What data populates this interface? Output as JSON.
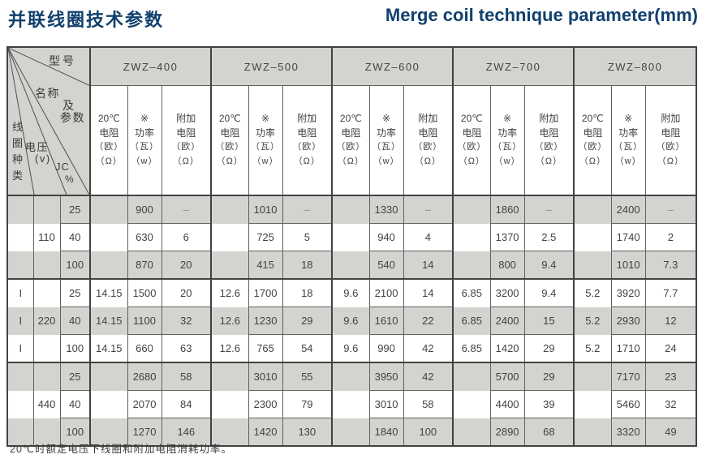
{
  "title_zh": "并联线圈技术参数",
  "title_en": "Merge coil technique parameter(mm)",
  "corner": {
    "model": "型号",
    "name1": "名称",
    "name2": "及",
    "name3": "参数",
    "coil_type": [
      "线",
      "圈",
      "种",
      "类"
    ],
    "voltage": "电压",
    "voltage_unit": "(v)",
    "jc": "JC",
    "jc_unit": "%"
  },
  "models": [
    "ZWZ–400",
    "ZWZ–500",
    "ZWZ–600",
    "ZWZ–700",
    "ZWZ–800"
  ],
  "subheaders": {
    "res": [
      "20℃",
      "电阻",
      "（欧）",
      "（Ω）"
    ],
    "power": [
      "※",
      "功率",
      "（瓦）",
      "（w）"
    ],
    "extra": [
      "附加",
      "电阻",
      "（欧）",
      "（Ω）"
    ]
  },
  "rows": [
    {
      "coil": "",
      "volt": "",
      "jc": "25",
      "cells": [
        [
          "",
          "900",
          "–"
        ],
        [
          "",
          "1010",
          "–"
        ],
        [
          "",
          "1330",
          "–"
        ],
        [
          "",
          "1860",
          "–"
        ],
        [
          "",
          "2400",
          "–"
        ]
      ]
    },
    {
      "coil": "",
      "volt": "110",
      "jc": "40",
      "cells": [
        [
          "",
          "630",
          "6"
        ],
        [
          "",
          "725",
          "5"
        ],
        [
          "",
          "940",
          "4"
        ],
        [
          "",
          "1370",
          "2.5"
        ],
        [
          "",
          "1740",
          "2"
        ]
      ]
    },
    {
      "coil": "",
      "volt": "",
      "jc": "100",
      "cells": [
        [
          "",
          "870",
          "20"
        ],
        [
          "",
          "415",
          "18"
        ],
        [
          "",
          "540",
          "14"
        ],
        [
          "",
          "800",
          "9.4"
        ],
        [
          "",
          "1010",
          "7.3"
        ]
      ]
    },
    {
      "coil": "I",
      "volt": "",
      "jc": "25",
      "cells": [
        [
          "14.15",
          "1500",
          "20"
        ],
        [
          "12.6",
          "1700",
          "18"
        ],
        [
          "9.6",
          "2100",
          "14"
        ],
        [
          "6.85",
          "3200",
          "9.4"
        ],
        [
          "5.2",
          "3920",
          "7.7"
        ]
      ]
    },
    {
      "coil": "I",
      "volt": "220",
      "jc": "40",
      "cells": [
        [
          "14.15",
          "1100",
          "32"
        ],
        [
          "12.6",
          "1230",
          "29"
        ],
        [
          "9.6",
          "1610",
          "22"
        ],
        [
          "6.85",
          "2400",
          "15"
        ],
        [
          "5.2",
          "2930",
          "12"
        ]
      ]
    },
    {
      "coil": "I",
      "volt": "",
      "jc": "100",
      "cells": [
        [
          "14.15",
          "660",
          "63"
        ],
        [
          "12.6",
          "765",
          "54"
        ],
        [
          "9.6",
          "990",
          "42"
        ],
        [
          "6.85",
          "1420",
          "29"
        ],
        [
          "5.2",
          "1710",
          "24"
        ]
      ]
    },
    {
      "coil": "",
      "volt": "",
      "jc": "25",
      "cells": [
        [
          "",
          "2680",
          "58"
        ],
        [
          "",
          "3010",
          "55"
        ],
        [
          "",
          "3950",
          "42"
        ],
        [
          "",
          "5700",
          "29"
        ],
        [
          "",
          "7170",
          "23"
        ]
      ]
    },
    {
      "coil": "",
      "volt": "440",
      "jc": "40",
      "cells": [
        [
          "",
          "2070",
          "84"
        ],
        [
          "",
          "2300",
          "79"
        ],
        [
          "",
          "3010",
          "58"
        ],
        [
          "",
          "4400",
          "39"
        ],
        [
          "",
          "5460",
          "32"
        ]
      ]
    },
    {
      "coil": "",
      "volt": "",
      "jc": "100",
      "cells": [
        [
          "",
          "1270",
          "146"
        ],
        [
          "",
          "1420",
          "130"
        ],
        [
          "",
          "1840",
          "100"
        ],
        [
          "",
          "2890",
          "68"
        ],
        [
          "",
          "3320",
          "49"
        ]
      ]
    }
  ],
  "footnote": "20℃时额定电压下线圈和附加电阻消耗功率。",
  "colors": {
    "title": "#11406e",
    "header_bg": "#d4d3d0",
    "stripe_bg": "#d4d3d0",
    "border_dark": "#424242",
    "border_light": "#616161",
    "dash": "#8d8d8d"
  }
}
